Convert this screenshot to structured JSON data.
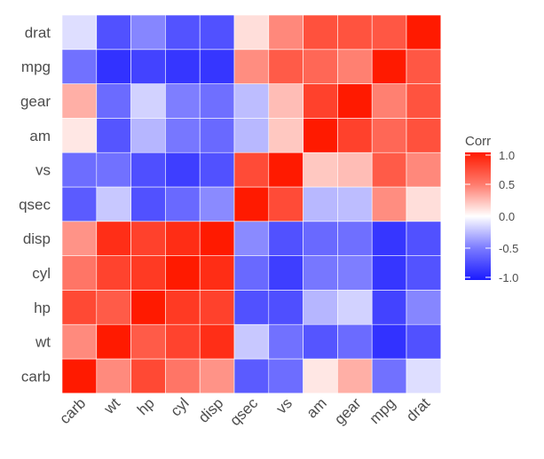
{
  "chart_data": {
    "type": "heatmap",
    "title": "",
    "xlabel": "",
    "ylabel": "",
    "variables": [
      "carb",
      "wt",
      "hp",
      "cyl",
      "disp",
      "qsec",
      "vs",
      "am",
      "gear",
      "mpg",
      "drat"
    ],
    "matrix": [
      [
        1,
        0.43,
        0.75,
        0.53,
        0.39,
        -0.66,
        -0.57,
        0.06,
        0.27,
        -0.55,
        -0.09
      ],
      [
        0.43,
        1,
        0.66,
        0.78,
        0.89,
        -0.17,
        -0.55,
        -0.69,
        -0.58,
        -0.87,
        -0.71
      ],
      [
        0.75,
        0.66,
        1,
        0.83,
        0.79,
        -0.71,
        -0.72,
        -0.24,
        -0.13,
        -0.78,
        -0.45
      ],
      [
        0.53,
        0.78,
        0.83,
        1,
        0.9,
        -0.59,
        -0.81,
        -0.52,
        -0.49,
        -0.85,
        -0.7
      ],
      [
        0.39,
        0.89,
        0.79,
        0.9,
        1,
        -0.43,
        -0.71,
        -0.59,
        -0.56,
        -0.85,
        -0.71
      ],
      [
        -0.66,
        -0.17,
        -0.71,
        -0.59,
        -0.43,
        1,
        0.74,
        -0.23,
        -0.21,
        0.42,
        0.09
      ],
      [
        -0.57,
        -0.55,
        -0.72,
        -0.81,
        -0.71,
        0.74,
        1,
        0.17,
        0.21,
        0.66,
        0.44
      ],
      [
        0.06,
        -0.69,
        -0.24,
        -0.52,
        -0.59,
        -0.23,
        0.17,
        1,
        0.79,
        0.6,
        0.71
      ],
      [
        0.27,
        -0.58,
        -0.13,
        -0.49,
        -0.56,
        -0.21,
        0.21,
        0.79,
        1,
        0.48,
        0.7
      ],
      [
        -0.55,
        -0.87,
        -0.78,
        -0.85,
        -0.85,
        0.42,
        0.66,
        0.6,
        0.48,
        1,
        0.68
      ],
      [
        -0.09,
        -0.71,
        -0.45,
        -0.7,
        -0.71,
        0.09,
        0.44,
        0.71,
        0.7,
        0.68,
        1
      ]
    ],
    "legend": {
      "title": "Corr",
      "placement": "right",
      "range": [
        -1,
        1
      ],
      "ticks": [
        1.0,
        0.5,
        0.0,
        -0.5,
        -1.0
      ],
      "tick_labels": [
        "1.0",
        "0.5",
        "0.0",
        "-0.5",
        "-1.0"
      ],
      "colors": {
        "low": "#1a1aff",
        "mid": "#ffffff",
        "high": "#ff1a00"
      }
    }
  }
}
